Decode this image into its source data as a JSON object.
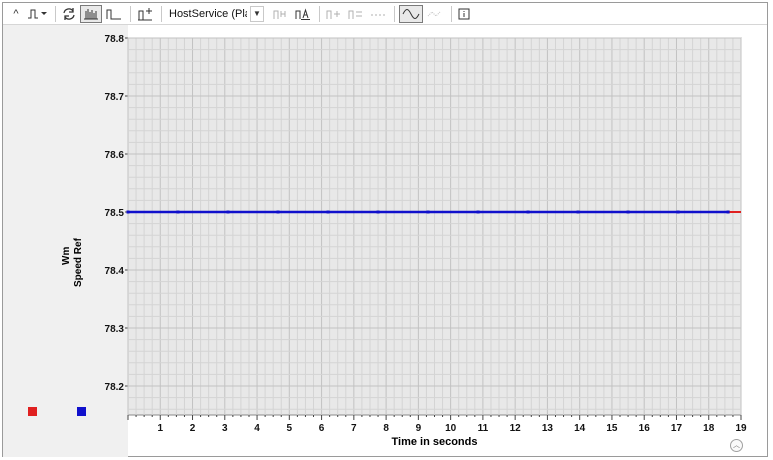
{
  "toolbar": {
    "buttons": [
      {
        "icon": "collapse-icon",
        "label": "^"
      },
      {
        "icon": "step-signal-icon",
        "label": ""
      },
      {
        "icon": "refresh-icon",
        "label": ""
      },
      {
        "icon": "bar-graph-icon",
        "label": ""
      },
      {
        "icon": "step-graph-icon",
        "label": ""
      },
      {
        "icon": "cursor-signal-icon",
        "label": ""
      }
    ],
    "service_select": "HostService (Platfor"
  },
  "chart_data": {
    "type": "line",
    "xlabel": "Time in seconds",
    "ylabel": [
      "Wm",
      "Speed Ref"
    ],
    "xlim": [
      0,
      19
    ],
    "ylim": [
      78.15,
      78.8
    ],
    "x_ticks": [
      1,
      2,
      3,
      4,
      5,
      6,
      7,
      8,
      9,
      10,
      11,
      12,
      13,
      14,
      15,
      16,
      17,
      18,
      19
    ],
    "y_ticks": [
      78.8,
      78.7,
      78.6,
      78.5,
      78.4,
      78.3,
      78.2
    ],
    "grid": true,
    "legend_placement": "left-bottom",
    "series": [
      {
        "color": "#e02020",
        "x": [
          0,
          19
        ],
        "y": [
          78.5,
          78.5
        ]
      },
      {
        "color": "#1010cc",
        "x": [
          0,
          18.6
        ],
        "y": [
          78.5,
          78.5
        ]
      }
    ]
  },
  "colors": {
    "plot_bg": "#e8e8e8",
    "panel_bg": "#f0f0f0",
    "wm": "#e02020",
    "speed_ref": "#1010cc"
  }
}
